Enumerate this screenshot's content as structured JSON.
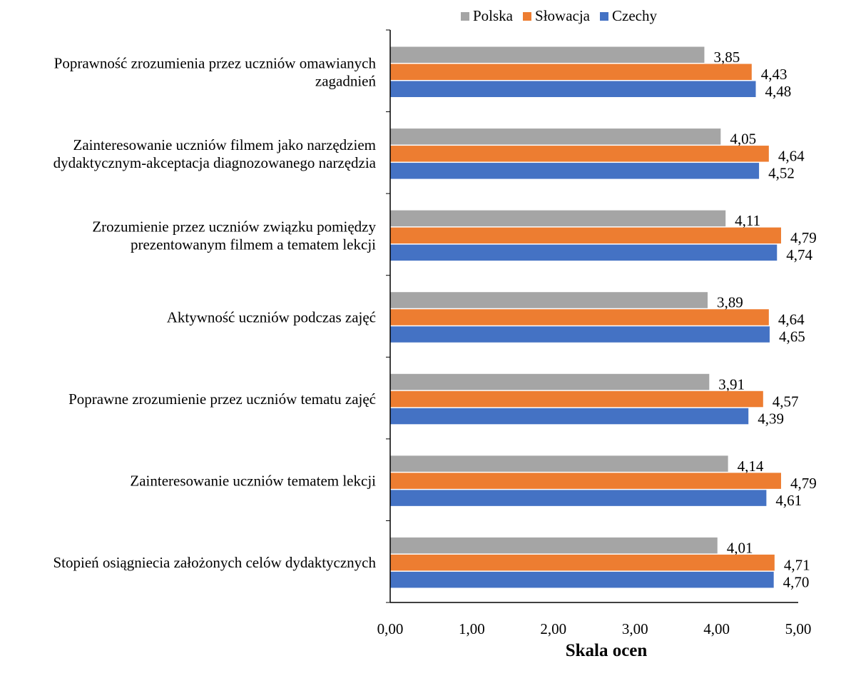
{
  "chart_data": {
    "type": "bar",
    "orientation": "horizontal",
    "title": "",
    "xlabel": "Skala ocen",
    "ylabel": "",
    "xlim": [
      0,
      5
    ],
    "ticks": [
      "0,00",
      "1,00",
      "2,00",
      "3,00",
      "4,00",
      "5,00"
    ],
    "grid": false,
    "legend_position": "top",
    "categories": [
      [
        "Poprawność zrozumienia przez uczniów omawianych",
        "zagadnień"
      ],
      [
        "Zainteresowanie uczniów filmem jako narzędziem",
        "dydaktycznym-akceptacja diagnozowanego narzędzia"
      ],
      [
        "Zrozumienie przez uczniów związku pomiędzy",
        "prezentowanym filmem a tematem lekcji"
      ],
      [
        "Aktywność uczniów podczas zajęć"
      ],
      [
        "Poprawne zrozumienie przez uczniów tematu zajęć"
      ],
      [
        "Zainteresowanie uczniów tematem lekcji"
      ],
      [
        "Stopień osiągniecia założonych celów dydaktycznych"
      ]
    ],
    "series": [
      {
        "name": "Polska",
        "color": "#a5a5a5",
        "values": [
          3.85,
          4.05,
          4.11,
          3.89,
          3.91,
          4.14,
          4.01
        ],
        "labels": [
          "3,85",
          "4,05",
          "4,11",
          "3,89",
          "3,91",
          "4,14",
          "4,01"
        ]
      },
      {
        "name": "Słowacja",
        "color": "#ed7d31",
        "values": [
          4.43,
          4.64,
          4.79,
          4.64,
          4.57,
          4.79,
          4.71
        ],
        "labels": [
          "4,43",
          "4,64",
          "4,79",
          "4,64",
          "4,57",
          "4,79",
          "4,71"
        ]
      },
      {
        "name": "Czechy",
        "color": "#4472c4",
        "values": [
          4.48,
          4.52,
          4.74,
          4.65,
          4.39,
          4.61,
          4.7
        ],
        "labels": [
          "4,48",
          "4,52",
          "4,74",
          "4,65",
          "4,39",
          "4,61",
          "4,70"
        ]
      }
    ]
  }
}
